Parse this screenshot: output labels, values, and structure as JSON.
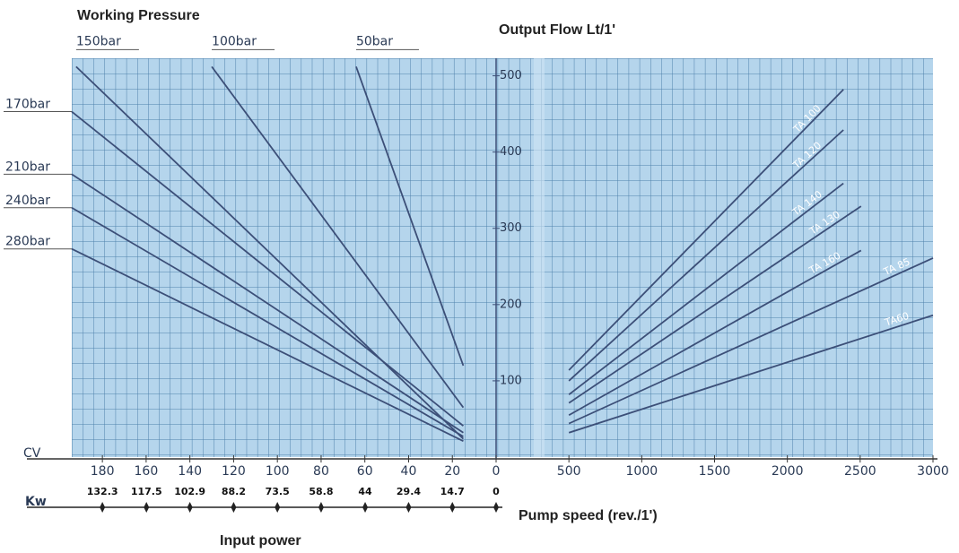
{
  "chart_data": [
    {
      "type": "line",
      "title": "Working Pressure",
      "xlabel": "CV",
      "x2label": "Kw",
      "x2title": "Input power",
      "xlim": [
        194,
        0
      ],
      "ylim": [
        0,
        523
      ],
      "xticks": [
        180,
        160,
        140,
        120,
        100,
        80,
        60,
        40,
        20,
        0
      ],
      "x2lim": [
        142.59,
        0
      ],
      "x2ticks": [
        132.3,
        117.5,
        102.9,
        88.2,
        73.5,
        58.8,
        44,
        29.4,
        14.7,
        0
      ],
      "color": "#3c4f78",
      "grid": true,
      "series": [
        {
          "name": "150bar",
          "x": [
            192,
            15
          ],
          "values": [
            512,
            24
          ]
        },
        {
          "name": "100bar",
          "x": [
            130,
            15
          ],
          "values": [
            512,
            65
          ]
        },
        {
          "name": "50bar",
          "x": [
            64,
            15
          ],
          "values": [
            512,
            120
          ]
        },
        {
          "name": "170bar",
          "x": [
            194,
            15
          ],
          "values": [
            453,
            41
          ]
        },
        {
          "name": "210bar",
          "x": [
            194,
            15
          ],
          "values": [
            371,
            32
          ]
        },
        {
          "name": "240bar",
          "x": [
            194,
            15
          ],
          "values": [
            327,
            27
          ]
        },
        {
          "name": "280bar",
          "x": [
            194,
            15
          ],
          "values": [
            273,
            21
          ]
        }
      ]
    },
    {
      "type": "line",
      "title": "Output Flow Lt/1'",
      "xlabel": "Pump speed (rev./1')",
      "xlim": [
        0,
        3000
      ],
      "ylim": [
        0,
        523
      ],
      "xticks": [
        500,
        1000,
        1500,
        2000,
        2500,
        3000
      ],
      "yticks": [
        100,
        200,
        300,
        400,
        500
      ],
      "color": "#3c4f78",
      "grid": true,
      "series": [
        {
          "name": "TA 100",
          "x": [
            500,
            2385
          ],
          "values": [
            114,
            482
          ]
        },
        {
          "name": "TA 120",
          "x": [
            500,
            2385
          ],
          "values": [
            100,
            429
          ]
        },
        {
          "name": "TA 140",
          "x": [
            500,
            2385
          ],
          "values": [
            82,
            359
          ]
        },
        {
          "name": "TA 130",
          "x": [
            500,
            2506
          ],
          "values": [
            71,
            329
          ]
        },
        {
          "name": "TA 160",
          "x": [
            500,
            2506
          ],
          "values": [
            55,
            271
          ]
        },
        {
          "name": "TA 85",
          "x": [
            500,
            3000
          ],
          "values": [
            44,
            261
          ]
        },
        {
          "name": "TA60",
          "x": [
            500,
            3000
          ],
          "values": [
            32,
            186
          ]
        }
      ]
    }
  ]
}
